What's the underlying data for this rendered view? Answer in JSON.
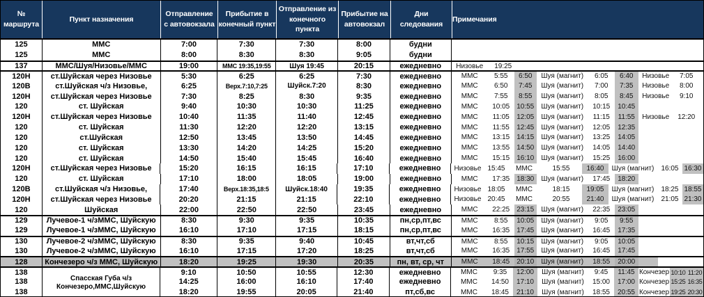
{
  "table": {
    "colors": {
      "header_bg": "#17375d",
      "header_text": "#ffffff",
      "highlight": "#c0c0c0",
      "highlight_dark": "#b2b2b2",
      "border": "#000000"
    },
    "headers": [
      {
        "lines": [
          "№",
          "маршрута"
        ]
      },
      {
        "lines": [
          "Пункт назначения"
        ]
      },
      {
        "lines": [
          "Отправление",
          "с автовокзала"
        ]
      },
      {
        "lines": [
          "Прибытие в",
          "конечный пункт"
        ]
      },
      {
        "lines": [
          "Отправление из",
          "конечного пункта"
        ]
      },
      {
        "lines": [
          "Прибытие на",
          "автовокзал"
        ]
      },
      {
        "lines": [
          "Дни",
          "следования"
        ]
      },
      {
        "lines": [
          "Примечания"
        ]
      }
    ],
    "rows": [
      {
        "r": "125",
        "d": "ММС",
        "t": [
          "7:00",
          "7:30",
          "7:30",
          "8:00"
        ],
        "days": "будни",
        "n": []
      },
      {
        "r": "125",
        "d": "ММС",
        "t": [
          "8:00",
          "8:30",
          "8:30",
          "9:05"
        ],
        "days": "будни",
        "n": []
      },
      {
        "r": "137",
        "d": "ММС/Шуя/Низовье/ММС",
        "t": [
          "19:00",
          "ММС 19:35,19:55",
          "Шуя 19:45",
          "20:15"
        ],
        "days": "ежедневно",
        "sep": 1,
        "n": [
          [
            "Низовье",
            52,
            0
          ],
          [
            "19:25",
            44,
            0
          ]
        ]
      },
      {
        "r": "120Н",
        "d": "ст.Шуйская через Низовье",
        "t": [
          "5:30",
          "6:25",
          "6:25",
          "7:30"
        ],
        "days": "ежедневно",
        "sep": 1,
        "n": [
          [
            "ММС",
            52,
            0
          ],
          [
            "5:55",
            38,
            0
          ],
          [
            "6:50",
            32,
            1
          ],
          [
            "Шуя (магнит)",
            74,
            0
          ],
          [
            "6:05",
            38,
            0
          ],
          [
            "6:40",
            34,
            1
          ],
          [
            "Низовье",
            50,
            0
          ],
          [
            "7:05",
            38,
            0
          ]
        ]
      },
      {
        "r": "120В",
        "d": "ст.Шуйская ч/з Низовье,",
        "t": [
          "6:25",
          "Верх.7:10,7:25",
          "Шуйск.7:20",
          "8:30"
        ],
        "days": "ежедневно",
        "n": [
          [
            "ММС",
            52,
            0
          ],
          [
            "6:50",
            38,
            0
          ],
          [
            "7:45",
            32,
            1
          ],
          [
            "Шуя (магнит)",
            74,
            0
          ],
          [
            "7:00",
            38,
            0
          ],
          [
            "7:35",
            34,
            1
          ],
          [
            "Низовье",
            50,
            0
          ],
          [
            "8:00",
            38,
            0
          ]
        ]
      },
      {
        "r": "120Н",
        "d": "ст.Шуйская через Низовье",
        "t": [
          "7:30",
          "8:25",
          "8:30",
          "9:35"
        ],
        "days": "ежедневно",
        "n": [
          [
            "ММС",
            52,
            0
          ],
          [
            "7:55",
            38,
            0
          ],
          [
            "8:55",
            32,
            1
          ],
          [
            "Шуя (магнит)",
            74,
            0
          ],
          [
            "8:05",
            38,
            0
          ],
          [
            "8:45",
            34,
            1
          ],
          [
            "Низовье",
            50,
            0
          ],
          [
            "9:10",
            38,
            0
          ]
        ]
      },
      {
        "r": "120",
        "d": "ст. Шуйская",
        "t": [
          "9:40",
          "10:30",
          "10:30",
          "11:25"
        ],
        "days": "ежедневно",
        "n": [
          [
            "ММС",
            52,
            0
          ],
          [
            "10:05",
            38,
            0
          ],
          [
            "10:55",
            32,
            1
          ],
          [
            "Шуя (магнит)",
            74,
            0
          ],
          [
            "10:15",
            38,
            0
          ],
          [
            "10:45",
            34,
            1
          ]
        ]
      },
      {
        "r": "120Н",
        "d": "ст.Шуйская через Низовье",
        "t": [
          "10:40",
          "11:35",
          "11:40",
          "12:45"
        ],
        "days": "ежедневно",
        "n": [
          [
            "ММС",
            52,
            0
          ],
          [
            "11:05",
            38,
            0
          ],
          [
            "12:05",
            32,
            1
          ],
          [
            "Шуя (магнит)",
            74,
            0
          ],
          [
            "11:15",
            38,
            0
          ],
          [
            "11:55",
            34,
            1
          ],
          [
            "Низовье",
            50,
            0
          ],
          [
            "12:20",
            38,
            0
          ]
        ]
      },
      {
        "r": "120",
        "d": "ст. Шуйская",
        "t": [
          "11:30",
          "12:20",
          "12:20",
          "13:15"
        ],
        "days": "ежедневно",
        "n": [
          [
            "ММС",
            52,
            0
          ],
          [
            "11:55",
            38,
            0
          ],
          [
            "12:45",
            32,
            1
          ],
          [
            "Шуя (магнит)",
            74,
            0
          ],
          [
            "12:05",
            38,
            0
          ],
          [
            "12:35",
            34,
            1
          ]
        ]
      },
      {
        "r": "120",
        "d": "ст.Шуйская",
        "t": [
          "12:50",
          "13:45",
          "13:50",
          "14:45"
        ],
        "days": "ежедневно",
        "n": [
          [
            "ММС",
            52,
            0
          ],
          [
            "13:15",
            38,
            0
          ],
          [
            "14:15",
            32,
            1
          ],
          [
            "Шуя (магнит)",
            74,
            0
          ],
          [
            "13:25",
            38,
            0
          ],
          [
            "14:05",
            34,
            1
          ]
        ]
      },
      {
        "r": "120",
        "d": "ст. Шуйская",
        "t": [
          "13:30",
          "14:20",
          "14:25",
          "15:20"
        ],
        "days": "ежедневно",
        "n": [
          [
            "ММС",
            52,
            0
          ],
          [
            "13:55",
            38,
            0
          ],
          [
            "14:50",
            32,
            1
          ],
          [
            "Шуя (магнит)",
            74,
            0
          ],
          [
            "14:05",
            38,
            0
          ],
          [
            "14:40",
            34,
            1
          ]
        ]
      },
      {
        "r": "120",
        "d": "ст. Шуйская",
        "t": [
          "14:50",
          "15:40",
          "15:45",
          "16:40"
        ],
        "days": "ежедневно",
        "n": [
          [
            "ММС",
            52,
            0
          ],
          [
            "15:15",
            38,
            0
          ],
          [
            "16:10",
            32,
            1
          ],
          [
            "Шуя (магнит)",
            74,
            0
          ],
          [
            "15:25",
            38,
            0
          ],
          [
            "16:00",
            34,
            1
          ]
        ]
      },
      {
        "r": "120Н",
        "d": "ст.Шуйская через Низовье",
        "t": [
          "15:20",
          "16:15",
          "16:15",
          "17:10"
        ],
        "days": "ежедневно",
        "n": [
          [
            "Низовье",
            48,
            0
          ],
          [
            "15:45",
            34,
            0
          ],
          [
            "ММС",
            46,
            0
          ],
          [
            "15:55",
            60,
            0
          ],
          [
            "16:40",
            38,
            1
          ],
          [
            "Шуя (магнит)",
            70,
            0
          ],
          [
            "16:05",
            36,
            0
          ],
          [
            "16:30",
            30,
            1
          ]
        ]
      },
      {
        "r": "120",
        "d": "ст. Шуйская",
        "t": [
          "17:10",
          "18:00",
          "18:05",
          "19:00"
        ],
        "days": "ежедневно",
        "n": [
          [
            "ММС",
            52,
            0
          ],
          [
            "17:35",
            38,
            0
          ],
          [
            "18:30",
            32,
            1
          ],
          [
            "Шуя (магнит)",
            74,
            0
          ],
          [
            "17:45",
            38,
            0
          ],
          [
            "18:20",
            34,
            1
          ]
        ]
      },
      {
        "r": "120В",
        "d": "ст.Шуйская ч/з Низовье,",
        "t": [
          "17:40",
          "Верх.18:35,18:5",
          "Шуйск.18:40",
          "19:35"
        ],
        "days": "ежедневно",
        "n": [
          [
            "Низовье",
            48,
            0
          ],
          [
            "18:05",
            34,
            0
          ],
          [
            "ММС",
            46,
            0
          ],
          [
            "18:15",
            60,
            0
          ],
          [
            "19:05",
            38,
            1
          ],
          [
            "Шуя (магнит)",
            70,
            0
          ],
          [
            "18:25",
            36,
            0
          ],
          [
            "18:55",
            30,
            1
          ]
        ]
      },
      {
        "r": "120Н",
        "d": "ст.Шуйская через Низовье",
        "t": [
          "20:20",
          "21:15",
          "21:15",
          "22:10"
        ],
        "days": "ежедневно",
        "n": [
          [
            "Низовье",
            48,
            0
          ],
          [
            "20:45",
            34,
            0
          ],
          [
            "ММС",
            46,
            0
          ],
          [
            "20:55",
            60,
            0
          ],
          [
            "21:40",
            38,
            1
          ],
          [
            "Шуя (магнит)",
            70,
            0
          ],
          [
            "21:05",
            36,
            0
          ],
          [
            "21:30",
            30,
            1
          ]
        ]
      },
      {
        "r": "120",
        "d": "Шуйская",
        "t": [
          "22:00",
          "22:50",
          "22:50",
          "23:45"
        ],
        "days": "ежедневно",
        "n": [
          [
            "ММС",
            52,
            0
          ],
          [
            "22:25",
            38,
            0
          ],
          [
            "23:15",
            32,
            1
          ],
          [
            "Шуя (магнит)",
            74,
            0
          ],
          [
            "22:35",
            38,
            0
          ],
          [
            "23:05",
            34,
            1
          ]
        ]
      },
      {
        "r": "129",
        "d": "Лучевое-1 ч/зММС, Шуйскую",
        "t": [
          "8:30",
          "9:30",
          "9:35",
          "10:35"
        ],
        "days": "пн,ср,пт,вс",
        "sep": 1,
        "n": [
          [
            "ММС",
            52,
            0
          ],
          [
            "8:55",
            38,
            0
          ],
          [
            "10:05",
            32,
            1
          ],
          [
            "Шуя (магнит)",
            74,
            0
          ],
          [
            "9:05",
            38,
            0
          ],
          [
            "9:55",
            34,
            1
          ]
        ]
      },
      {
        "r": "129",
        "d": "Лучевое-1 ч/зММС, Шуйскую",
        "t": [
          "16:10",
          "17:10",
          "17:15",
          "18:15"
        ],
        "days": "пн,ср,пт,вс",
        "n": [
          [
            "ММС",
            52,
            0
          ],
          [
            "16:35",
            38,
            0
          ],
          [
            "17:45",
            32,
            1
          ],
          [
            "Шуя (магнит)",
            74,
            0
          ],
          [
            "16:45",
            38,
            0
          ],
          [
            "17:35",
            34,
            1
          ]
        ]
      },
      {
        "r": "130",
        "d": "Лучевое-2 ч/зММС, Шуйскую",
        "t": [
          "8:30",
          "9:35",
          "9:40",
          "10:45"
        ],
        "days": "вт,чт,сб",
        "sep": 1,
        "n": [
          [
            "ММС",
            52,
            0
          ],
          [
            "8:55",
            38,
            0
          ],
          [
            "10:15",
            32,
            1
          ],
          [
            "Шуя (магнит)",
            74,
            0
          ],
          [
            "9:05",
            38,
            0
          ],
          [
            "10:05",
            34,
            1
          ]
        ]
      },
      {
        "r": "130",
        "d": "Лучевое-2 ч/зММС, Шуйскую",
        "t": [
          "16:10",
          "17:15",
          "17:20",
          "18:25"
        ],
        "days": "вт,чт,сб",
        "n": [
          [
            "ММС",
            52,
            0
          ],
          [
            "16:35",
            38,
            0
          ],
          [
            "17:55",
            32,
            1
          ],
          [
            "Шуя (магнит)",
            74,
            0
          ],
          [
            "16:45",
            38,
            0
          ],
          [
            "17:45",
            34,
            1
          ]
        ]
      },
      {
        "r": "128",
        "d": "Кончезеро ч/з ММС, Шуйскую",
        "t": [
          "18:20",
          "19:25",
          "19:30",
          "20:35"
        ],
        "days": "пн, вт, ср, чт",
        "sep": 1,
        "hl": 1,
        "n": [
          [
            "ММС",
            52,
            0
          ],
          [
            "18:45",
            38,
            0
          ],
          [
            "20:10",
            32,
            1
          ],
          [
            "Шуя (магнит)",
            74,
            0
          ],
          [
            "18:55",
            38,
            0
          ],
          [
            "20:00",
            34,
            1
          ],
          [
            "",
            28,
            0
          ]
        ]
      },
      {
        "r": "138",
        "dl": [
          "Спасская Губа ч/з",
          "Кончезеро,ММС,Шуйскую"
        ],
        "t": [
          "9:10",
          "10:50",
          "10:55",
          "12:30"
        ],
        "days": "ежедневно",
        "sep": 1,
        "n": [
          [
            "ММС",
            52,
            0
          ],
          [
            "9:35",
            37,
            0
          ],
          [
            "12:00",
            35,
            1
          ],
          [
            "Шуя (магнит)",
            73,
            0
          ],
          [
            "9:45",
            37,
            0
          ],
          [
            "11:45",
            35,
            1
          ],
          [
            "Кончезер",
            45,
            0
          ],
          [
            "10:10",
            24,
            1
          ],
          [
            "11:20",
            24,
            1
          ]
        ]
      },
      {
        "r": "138",
        "d": "",
        "t": [
          "14:25",
          "16:00",
          "16:10",
          "17:40"
        ],
        "days": "ежедневно",
        "n": [
          [
            "ММС",
            52,
            0
          ],
          [
            "14:50",
            37,
            0
          ],
          [
            "17:10",
            35,
            1
          ],
          [
            "Шуя (магнит)",
            73,
            0
          ],
          [
            "15:00",
            37,
            0
          ],
          [
            "17:00",
            35,
            1
          ],
          [
            "Кончезер",
            45,
            0
          ],
          [
            "15:25",
            24,
            1
          ],
          [
            "16:35",
            24,
            1
          ]
        ]
      },
      {
        "r": "138",
        "d": "",
        "t": [
          "18:20",
          "19:55",
          "20:05",
          "21:40"
        ],
        "days": "пт,сб,вс",
        "n": [
          [
            "ММС",
            52,
            0
          ],
          [
            "18:45",
            37,
            0
          ],
          [
            "21:10",
            35,
            1
          ],
          [
            "Шуя (магнит)",
            73,
            0
          ],
          [
            "18:55",
            37,
            0
          ],
          [
            "20:55",
            35,
            1
          ],
          [
            "Кончезер",
            45,
            0
          ],
          [
            "19:25",
            24,
            1
          ],
          [
            "20:30",
            24,
            1
          ]
        ]
      }
    ]
  }
}
